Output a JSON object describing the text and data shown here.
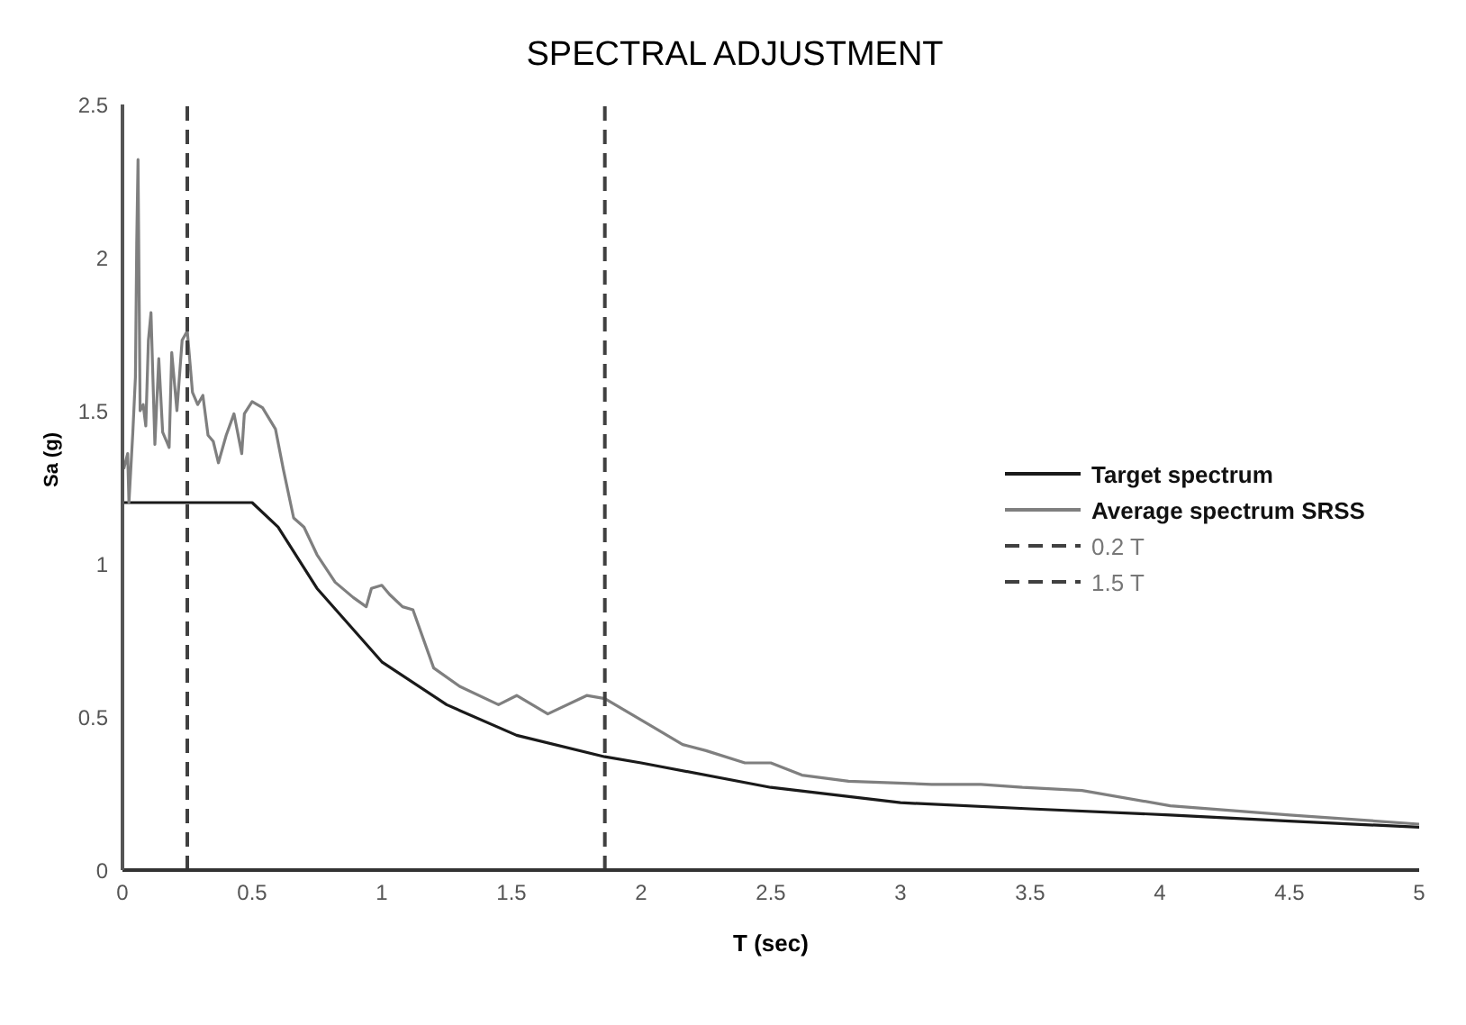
{
  "chart_data": {
    "type": "line",
    "title": "SPECTRAL ADJUSTMENT",
    "xlabel": "T (sec)",
    "ylabel": "Sa (g)",
    "xlim": [
      0,
      5
    ],
    "xticks": [
      0,
      0.5,
      1,
      1.5,
      2,
      2.5,
      3,
      3.5,
      4,
      4.5,
      5
    ],
    "ylim": [
      0,
      2.5
    ],
    "yticks": [
      0,
      0.5,
      1,
      1.5,
      2,
      2.5
    ],
    "grid": false,
    "legend": "right",
    "marker": "none",
    "series": [
      {
        "name": "Target spectrum",
        "color": "#1a1a1a",
        "line_style": "solid",
        "x": [
          0,
          0.5,
          0.6,
          0.75,
          1,
          1.25,
          1.52,
          1.86,
          2,
          2.5,
          3,
          3.5,
          4.04,
          4.5,
          5
        ],
        "values": [
          1.2,
          1.2,
          1.12,
          0.92,
          0.68,
          0.54,
          0.44,
          0.37,
          0.35,
          0.27,
          0.22,
          0.2,
          0.18,
          0.16,
          0.14
        ]
      },
      {
        "name": "Average spectrum SRSS",
        "color": "#7f7f7f",
        "line_style": "solid",
        "x": [
          0.005,
          0.02,
          0.025,
          0.04,
          0.05,
          0.055,
          0.06,
          0.068,
          0.08,
          0.09,
          0.1,
          0.11,
          0.125,
          0.14,
          0.155,
          0.17,
          0.18,
          0.19,
          0.21,
          0.23,
          0.25,
          0.27,
          0.29,
          0.31,
          0.33,
          0.35,
          0.37,
          0.4,
          0.43,
          0.46,
          0.47,
          0.5,
          0.54,
          0.59,
          0.62,
          0.66,
          0.7,
          0.75,
          0.82,
          0.89,
          0.94,
          0.96,
          1.0,
          1.03,
          1.08,
          1.12,
          1.2,
          1.3,
          1.45,
          1.52,
          1.64,
          1.79,
          1.86,
          2.04,
          2.16,
          2.25,
          2.4,
          2.5,
          2.62,
          2.8,
          3.12,
          3.31,
          3.47,
          3.7,
          4.04,
          4.5,
          5
        ],
        "values": [
          1.31,
          1.36,
          1.2,
          1.43,
          1.61,
          2.05,
          2.32,
          1.5,
          1.52,
          1.45,
          1.73,
          1.82,
          1.39,
          1.67,
          1.43,
          1.4,
          1.38,
          1.69,
          1.5,
          1.73,
          1.76,
          1.56,
          1.52,
          1.55,
          1.42,
          1.4,
          1.33,
          1.42,
          1.49,
          1.36,
          1.49,
          1.53,
          1.51,
          1.44,
          1.31,
          1.15,
          1.12,
          1.03,
          0.94,
          0.89,
          0.86,
          0.92,
          0.93,
          0.9,
          0.86,
          0.85,
          0.66,
          0.6,
          0.54,
          0.57,
          0.51,
          0.57,
          0.56,
          0.47,
          0.41,
          0.39,
          0.35,
          0.35,
          0.31,
          0.29,
          0.28,
          0.28,
          0.27,
          0.26,
          0.21,
          0.18,
          0.15
        ]
      },
      {
        "name": "0.2 T",
        "color": "#404040",
        "line_style": "dashed",
        "x": [
          0.25,
          0.25
        ],
        "values": [
          0,
          2.5
        ]
      },
      {
        "name": "1.5 T",
        "color": "#404040",
        "line_style": "dashed",
        "x": [
          1.86,
          1.86
        ],
        "values": [
          0,
          2.5
        ]
      }
    ]
  }
}
